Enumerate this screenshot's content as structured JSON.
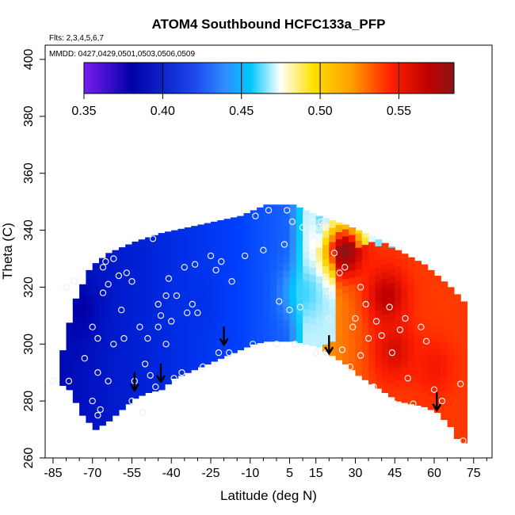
{
  "chart_data": {
    "type": "heatmap",
    "title": "ATOM4 Southbound HCFC133a_PFP",
    "flights_label": "Flts: 2,3,4,5,6,7",
    "dates_label": "MMDD: 0427,0429,0501,0503,0506,0509",
    "xlabel": "Latitude (deg N)",
    "ylabel": "Theta (C)",
    "xlim": [
      -88,
      82
    ],
    "ylim": [
      260,
      405
    ],
    "x_ticks": [
      -85,
      -70,
      -55,
      -40,
      -25,
      -10,
      5,
      15,
      30,
      45,
      60,
      75
    ],
    "y_ticks": [
      260,
      280,
      300,
      320,
      340,
      360,
      380,
      400
    ],
    "colorbar": {
      "min": 0.35,
      "max": 0.585,
      "ticks": [
        0.35,
        0.4,
        0.45,
        0.5,
        0.55
      ],
      "tick_labels": [
        "0.35",
        "0.40",
        "0.45",
        "0.50",
        "0.55"
      ],
      "colors": [
        "#7a1df0",
        "#0000a8",
        "#0040ff",
        "#2f8cff",
        "#00c8ff",
        "#ffffff",
        "#ffe000",
        "#ffa000",
        "#ff2000",
        "#c00000",
        "#8c1414"
      ]
    },
    "surface": {
      "lower_boundary": [
        [
          -85,
          287
        ],
        [
          -80,
          284
        ],
        [
          -75,
          275
        ],
        [
          -70,
          270
        ],
        [
          -65,
          273
        ],
        [
          -60,
          277
        ],
        [
          -55,
          281
        ],
        [
          -50,
          283
        ],
        [
          -45,
          284
        ],
        [
          -40,
          288
        ],
        [
          -35,
          290
        ],
        [
          -30,
          292
        ],
        [
          -25,
          294
        ],
        [
          -20,
          296
        ],
        [
          -15,
          298
        ],
        [
          -10,
          300
        ],
        [
          -5,
          301
        ],
        [
          0,
          301
        ],
        [
          5,
          301
        ],
        [
          10,
          300
        ],
        [
          15,
          299
        ],
        [
          20,
          296
        ],
        [
          25,
          293
        ],
        [
          30,
          289
        ],
        [
          35,
          286
        ],
        [
          40,
          283
        ],
        [
          45,
          280
        ],
        [
          50,
          279
        ],
        [
          55,
          278
        ],
        [
          60,
          276
        ],
        [
          65,
          271
        ],
        [
          68,
          266
        ],
        [
          71,
          265
        ]
      ],
      "upper_boundary": [
        [
          -85,
          287
        ],
        [
          -82,
          300
        ],
        [
          -78,
          315
        ],
        [
          -72,
          327
        ],
        [
          -65,
          332
        ],
        [
          -55,
          336
        ],
        [
          -45,
          339
        ],
        [
          -30,
          342
        ],
        [
          -15,
          345
        ],
        [
          -5,
          349
        ],
        [
          5,
          349
        ],
        [
          15,
          345
        ],
        [
          25,
          342
        ],
        [
          35,
          338
        ],
        [
          45,
          333
        ],
        [
          55,
          328
        ],
        [
          65,
          320
        ],
        [
          71,
          314
        ]
      ],
      "hotspots": [
        {
          "lat": 26,
          "theta": 333,
          "value": 0.585
        },
        {
          "lat": 42,
          "theta": 317,
          "value": 0.57
        },
        {
          "lat": 45,
          "theta": 298,
          "value": 0.56
        },
        {
          "lat": 60,
          "theta": 292,
          "value": 0.55
        },
        {
          "lat": -75,
          "theta": 312,
          "value": 0.38
        },
        {
          "lat": -30,
          "theta": 315,
          "value": 0.41
        },
        {
          "lat": 10,
          "theta": 318,
          "value": 0.46
        }
      ]
    },
    "points": [
      [
        -85,
        287
      ],
      [
        -80,
        320
      ],
      [
        -79,
        287
      ],
      [
        -77,
        322
      ],
      [
        -73,
        295
      ],
      [
        -70,
        280
      ],
      [
        -70,
        306
      ],
      [
        -68,
        275
      ],
      [
        -68,
        290
      ],
      [
        -68,
        302
      ],
      [
        -67,
        277
      ],
      [
        -66,
        318
      ],
      [
        -66,
        327
      ],
      [
        -65,
        329
      ],
      [
        -64,
        321
      ],
      [
        -64,
        287
      ],
      [
        -62,
        300
      ],
      [
        -62,
        330
      ],
      [
        -60,
        324
      ],
      [
        -59,
        312
      ],
      [
        -58,
        302
      ],
      [
        -57,
        325
      ],
      [
        -55,
        322
      ],
      [
        -55,
        280
      ],
      [
        -54,
        287
      ],
      [
        -52,
        306
      ],
      [
        -51,
        276
      ],
      [
        -50,
        293
      ],
      [
        -49,
        302
      ],
      [
        -48,
        289
      ],
      [
        -47,
        337
      ],
      [
        -46,
        285
      ],
      [
        -45,
        306
      ],
      [
        -45,
        314
      ],
      [
        -44,
        310
      ],
      [
        -42,
        300
      ],
      [
        -42,
        317
      ],
      [
        -41,
        323
      ],
      [
        -40,
        308
      ],
      [
        -39,
        288
      ],
      [
        -38,
        317
      ],
      [
        -36,
        290
      ],
      [
        -35,
        327
      ],
      [
        -34,
        311
      ],
      [
        -32,
        314
      ],
      [
        -31,
        328
      ],
      [
        -30,
        311
      ],
      [
        -28,
        292
      ],
      [
        -25,
        331
      ],
      [
        -23,
        326
      ],
      [
        -22,
        297
      ],
      [
        -21,
        329
      ],
      [
        -18,
        297
      ],
      [
        -17,
        322
      ],
      [
        -12,
        331
      ],
      [
        -9,
        300
      ],
      [
        -8,
        345
      ],
      [
        -5,
        333
      ],
      [
        -3,
        347
      ],
      [
        0,
        300
      ],
      [
        1,
        315
      ],
      [
        3,
        335
      ],
      [
        4,
        347
      ],
      [
        5,
        312
      ],
      [
        6,
        343
      ],
      [
        7,
        300
      ],
      [
        9,
        313
      ],
      [
        10,
        341
      ],
      [
        13,
        338
      ],
      [
        14,
        332
      ],
      [
        15,
        297
      ],
      [
        16,
        341
      ],
      [
        17,
        343
      ],
      [
        18,
        342
      ],
      [
        19,
        297
      ],
      [
        20,
        309
      ],
      [
        20,
        317
      ],
      [
        22,
        332
      ],
      [
        24,
        325
      ],
      [
        25,
        298
      ],
      [
        26,
        327
      ],
      [
        28,
        292
      ],
      [
        29,
        306
      ],
      [
        30,
        309
      ],
      [
        32,
        296
      ],
      [
        32,
        320
      ],
      [
        34,
        314
      ],
      [
        35,
        302
      ],
      [
        37,
        285
      ],
      [
        38,
        308
      ],
      [
        40,
        303
      ],
      [
        43,
        313
      ],
      [
        44,
        297
      ],
      [
        45,
        279
      ],
      [
        47,
        305
      ],
      [
        49,
        309
      ],
      [
        50,
        288
      ],
      [
        52,
        279
      ],
      [
        55,
        306
      ],
      [
        57,
        301
      ],
      [
        60,
        284
      ],
      [
        63,
        280
      ],
      [
        70,
        286
      ],
      [
        71,
        266
      ]
    ],
    "arrows": [
      {
        "lat": -54,
        "theta": 284
      },
      {
        "lat": -44,
        "theta": 287
      },
      {
        "lat": -20,
        "theta": 300
      },
      {
        "lat": 20,
        "theta": 297
      },
      {
        "lat": 61,
        "theta": 277
      }
    ],
    "annotations": [
      "Flts: 2,3,4,5,6,7",
      "MMDD: 0427,0429,0501,0503,0506,0509"
    ]
  }
}
